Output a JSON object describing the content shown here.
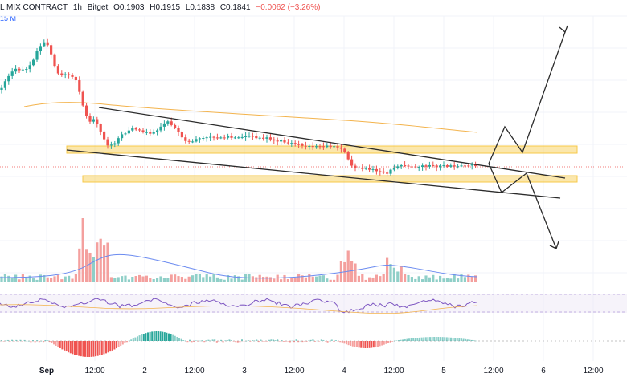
{
  "header": {
    "symbol_fragment": "L MIX CONTRACT",
    "interval": "1h",
    "exchange": "Bitget",
    "open": "O0.1903",
    "high": "H0.1915",
    "low": "L0.1838",
    "close": "C0.1841",
    "change": "−0.0062 (−3.26%)",
    "volume_fragment": "15 M"
  },
  "colors": {
    "up": "#26a69a",
    "down": "#ef5350",
    "vol_up": "#8fcfc8",
    "vol_down": "#f4a09e",
    "zone": "#f7c948",
    "ma": "#f3b34c",
    "vol_ma": "#6b8bf0",
    "trend": "#2b2b2b",
    "rsi": "#7e57c2",
    "grid": "#f0f3fa"
  },
  "chart_data": {
    "type": "candlestick",
    "title": "",
    "xlabel": "",
    "ylabel": "",
    "x_ticks": [
      "Sep",
      "12:00",
      "2",
      "12:00",
      "3",
      "12:00",
      "4",
      "12:00",
      "5",
      "12:00",
      "6",
      "12:00"
    ],
    "grid": true,
    "panels": [
      "price",
      "volume",
      "oscillator",
      "histogram"
    ],
    "indicators": [
      "moving average",
      "volume moving average",
      "oscillator line",
      "histogram"
    ],
    "annotations": [
      "descending channel",
      "support zone",
      "resistance zone",
      "bullish breakout projection",
      "bearish breakdown projection"
    ]
  }
}
